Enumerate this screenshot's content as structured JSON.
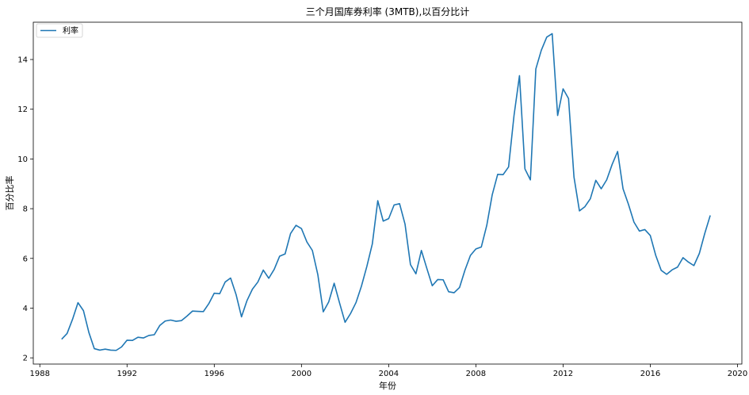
{
  "chart_data": {
    "type": "line",
    "title": "三个月国库券利率 (3MTB),以百分比计",
    "xlabel": "年份",
    "ylabel": "百分比率",
    "xlim": [
      1987.7,
      2020.2
    ],
    "ylim": [
      1.75,
      15.5
    ],
    "xticks": [
      1988,
      1992,
      1996,
      2000,
      2004,
      2008,
      2012,
      2016,
      2020
    ],
    "yticks": [
      2,
      4,
      6,
      8,
      10,
      12,
      14
    ],
    "grid": false,
    "legend_position": "top-left",
    "series": [
      {
        "name": "利率",
        "color": "#1f77b4",
        "points": [
          [
            1989.0,
            2.75
          ],
          [
            1989.25,
            2.98
          ],
          [
            1989.5,
            3.55
          ],
          [
            1989.75,
            4.22
          ],
          [
            1990.0,
            3.9
          ],
          [
            1990.25,
            3.02
          ],
          [
            1990.5,
            2.37
          ],
          [
            1990.75,
            2.31
          ],
          [
            1991.0,
            2.35
          ],
          [
            1991.25,
            2.31
          ],
          [
            1991.5,
            2.3
          ],
          [
            1991.75,
            2.44
          ],
          [
            1992.0,
            2.71
          ],
          [
            1992.25,
            2.7
          ],
          [
            1992.5,
            2.83
          ],
          [
            1992.75,
            2.8
          ],
          [
            1993.0,
            2.9
          ],
          [
            1993.25,
            2.93
          ],
          [
            1993.5,
            3.3
          ],
          [
            1993.75,
            3.48
          ],
          [
            1994.0,
            3.52
          ],
          [
            1994.25,
            3.47
          ],
          [
            1994.5,
            3.5
          ],
          [
            1994.75,
            3.68
          ],
          [
            1995.0,
            3.88
          ],
          [
            1995.25,
            3.87
          ],
          [
            1995.5,
            3.86
          ],
          [
            1995.75,
            4.18
          ],
          [
            1996.0,
            4.6
          ],
          [
            1996.25,
            4.58
          ],
          [
            1996.5,
            5.05
          ],
          [
            1996.75,
            5.21
          ],
          [
            1997.0,
            4.55
          ],
          [
            1997.25,
            3.65
          ],
          [
            1997.5,
            4.3
          ],
          [
            1997.75,
            4.76
          ],
          [
            1998.0,
            5.05
          ],
          [
            1998.25,
            5.53
          ],
          [
            1998.5,
            5.2
          ],
          [
            1998.75,
            5.56
          ],
          [
            1999.0,
            6.09
          ],
          [
            1999.25,
            6.18
          ],
          [
            1999.5,
            7.0
          ],
          [
            1999.75,
            7.33
          ],
          [
            2000.0,
            7.2
          ],
          [
            2000.25,
            6.66
          ],
          [
            2000.5,
            6.32
          ],
          [
            2000.75,
            5.35
          ],
          [
            2001.0,
            3.85
          ],
          [
            2001.25,
            4.25
          ],
          [
            2001.5,
            5.0
          ],
          [
            2001.75,
            4.2
          ],
          [
            2002.0,
            3.43
          ],
          [
            2002.25,
            3.78
          ],
          [
            2002.5,
            4.22
          ],
          [
            2002.75,
            4.88
          ],
          [
            2003.0,
            5.68
          ],
          [
            2003.25,
            6.58
          ],
          [
            2003.5,
            8.32
          ],
          [
            2003.75,
            7.5
          ],
          [
            2004.0,
            7.6
          ],
          [
            2004.25,
            8.15
          ],
          [
            2004.5,
            8.2
          ],
          [
            2004.75,
            7.38
          ],
          [
            2005.0,
            5.75
          ],
          [
            2005.25,
            5.38
          ],
          [
            2005.5,
            6.32
          ],
          [
            2005.75,
            5.6
          ],
          [
            2006.0,
            4.9
          ],
          [
            2006.25,
            5.15
          ],
          [
            2006.5,
            5.14
          ],
          [
            2006.75,
            4.66
          ],
          [
            2007.0,
            4.62
          ],
          [
            2007.25,
            4.83
          ],
          [
            2007.5,
            5.53
          ],
          [
            2007.75,
            6.12
          ],
          [
            2008.0,
            6.38
          ],
          [
            2008.25,
            6.46
          ],
          [
            2008.5,
            7.33
          ],
          [
            2008.75,
            8.56
          ],
          [
            2009.0,
            9.38
          ],
          [
            2009.25,
            9.37
          ],
          [
            2009.5,
            9.68
          ],
          [
            2009.75,
            11.75
          ],
          [
            2010.0,
            13.35
          ],
          [
            2010.25,
            9.6
          ],
          [
            2010.5,
            9.16
          ],
          [
            2010.75,
            13.62
          ],
          [
            2011.0,
            14.37
          ],
          [
            2011.25,
            14.9
          ],
          [
            2011.5,
            15.04
          ],
          [
            2011.75,
            11.75
          ],
          [
            2012.0,
            12.82
          ],
          [
            2012.25,
            12.43
          ],
          [
            2012.5,
            9.27
          ],
          [
            2012.75,
            7.91
          ],
          [
            2013.0,
            8.08
          ],
          [
            2013.25,
            8.4
          ],
          [
            2013.5,
            9.14
          ],
          [
            2013.75,
            8.8
          ],
          [
            2014.0,
            9.16
          ],
          [
            2014.25,
            9.78
          ],
          [
            2014.5,
            10.3
          ],
          [
            2014.75,
            8.8
          ],
          [
            2015.0,
            8.17
          ],
          [
            2015.25,
            7.46
          ],
          [
            2015.5,
            7.1
          ],
          [
            2015.75,
            7.16
          ],
          [
            2016.0,
            6.92
          ],
          [
            2016.25,
            6.12
          ],
          [
            2016.5,
            5.52
          ],
          [
            2016.75,
            5.36
          ],
          [
            2017.0,
            5.54
          ],
          [
            2017.25,
            5.65
          ],
          [
            2017.5,
            6.03
          ],
          [
            2017.75,
            5.85
          ],
          [
            2018.0,
            5.71
          ],
          [
            2018.25,
            6.2
          ],
          [
            2018.5,
            7.01
          ],
          [
            2018.75,
            7.73
          ]
        ]
      }
    ]
  }
}
